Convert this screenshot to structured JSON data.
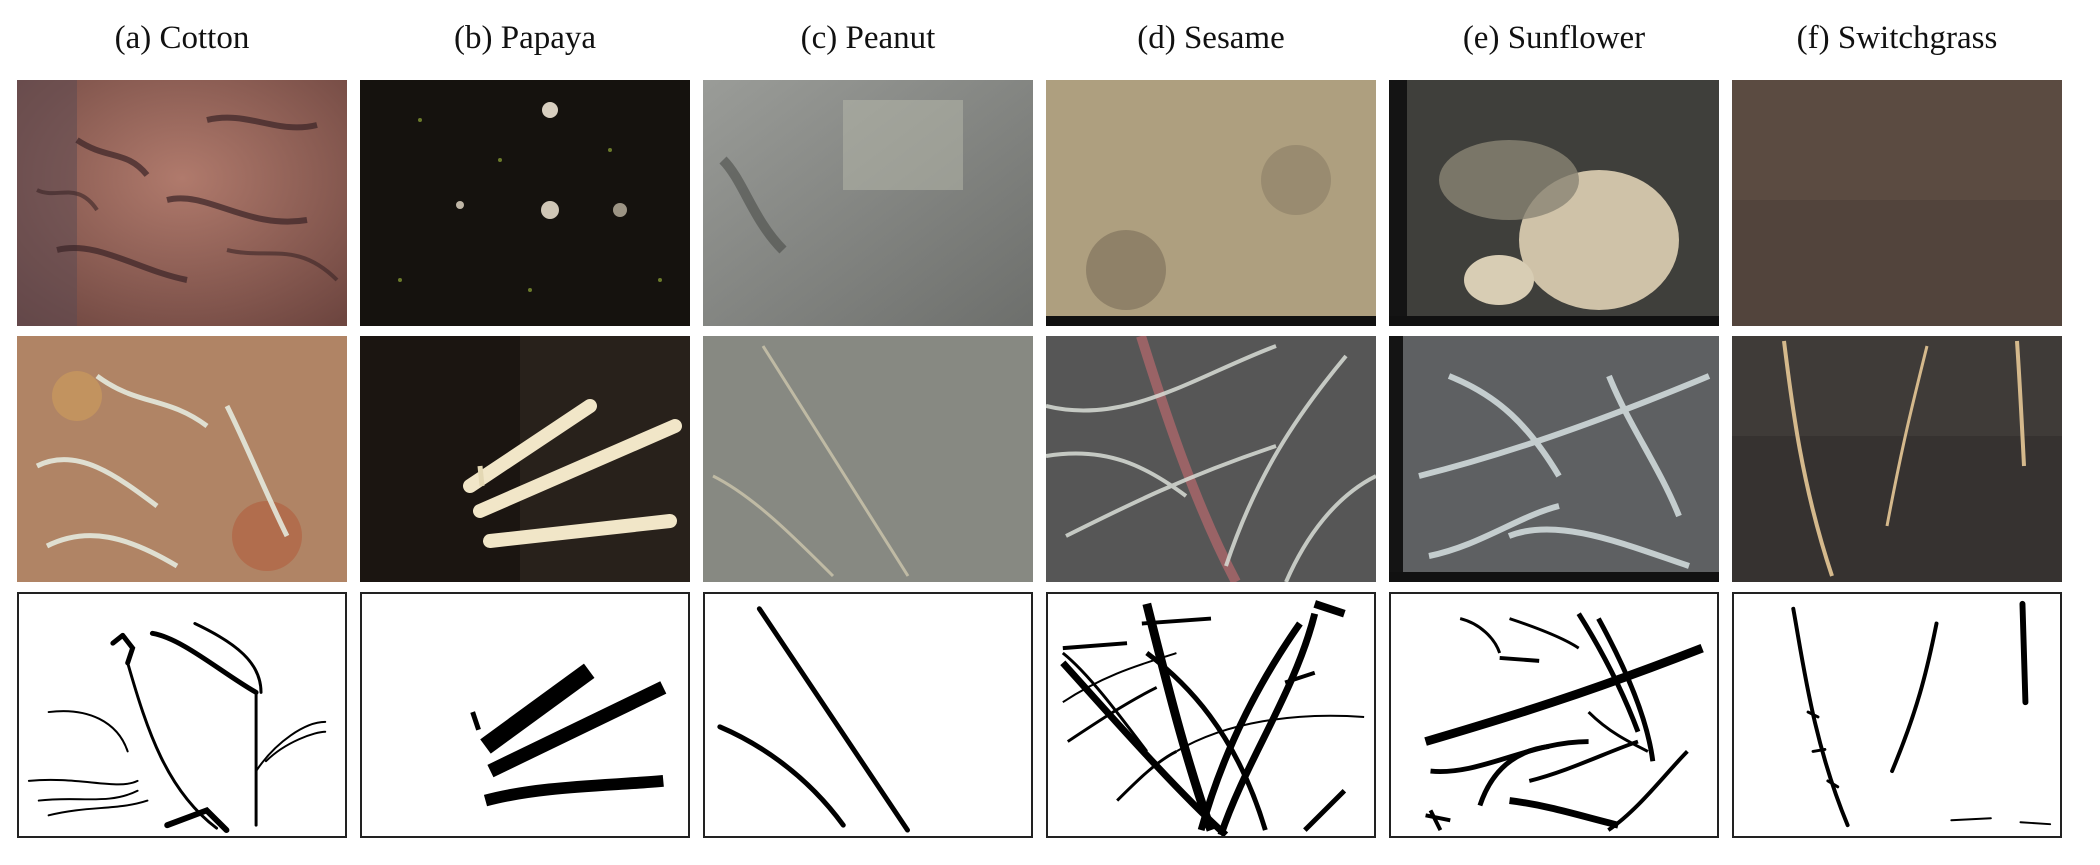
{
  "figure": {
    "columns": [
      {
        "id": "cotton",
        "caption": "(a) Cotton"
      },
      {
        "id": "papaya",
        "caption": "(b) Papaya"
      },
      {
        "id": "peanut",
        "caption": "(c) Peanut"
      },
      {
        "id": "sesame",
        "caption": "(d) Sesame"
      },
      {
        "id": "sunflower",
        "caption": "(e) Sunflower"
      },
      {
        "id": "switchgrass",
        "caption": "(f) Switchgrass"
      }
    ],
    "rows": [
      "soil-image",
      "root-image",
      "root-mask"
    ],
    "colors": {
      "cotton_soil": "#8a5a4f",
      "papaya_soil": "#14110d",
      "peanut_soil": "#8b8d88",
      "sesame_soil": "#a89878",
      "sunflower_soil": "#4a4a46",
      "switchgrass_soil": "#5a4a40",
      "mask_root": "#000000",
      "mask_background": "#ffffff"
    }
  }
}
